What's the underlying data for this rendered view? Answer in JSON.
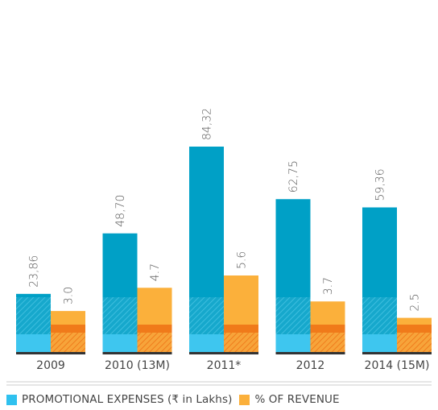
{
  "chart_data": {
    "type": "bar",
    "categories": [
      "2009",
      "2010 (13M)",
      "2011*",
      "2012",
      "2014 (15M)"
    ],
    "series": [
      {
        "name": "PROMOTIONAL EXPENSES (₹ in Lakhs)",
        "values": [
          23.86,
          48.7,
          84.32,
          62.75,
          59.36
        ],
        "labels": [
          "23,86",
          "48,70",
          "84,32",
          "62,75",
          "59,36"
        ],
        "color": "#00a0c6"
      },
      {
        "name": "% OF REVENUE",
        "values": [
          3.0,
          4.7,
          5.6,
          3.7,
          2.5
        ],
        "labels": [
          "3.0",
          "4.7",
          "5.6",
          "3.7",
          "2.5"
        ],
        "color": "#fbb03b"
      }
    ],
    "legend_position": "bottom-left",
    "grid": false
  },
  "colors": {
    "bar1": "#00a0c6",
    "bar1_hatch": "#2bb6d6",
    "bar1_base": "#3ec6ef",
    "bar2": "#fbb03b",
    "bar2_hatch": "#f28c28",
    "bar2_base": "#f07a1a",
    "baseline": "#333333",
    "divider": "#bbbbbb"
  },
  "legend": {
    "item1_prefix": "PROMOTIONAL EXPENSES (",
    "item1_symbol": "₹",
    "item1_suffix": " in Lakhs)",
    "item2": "% OF REVENUE"
  }
}
